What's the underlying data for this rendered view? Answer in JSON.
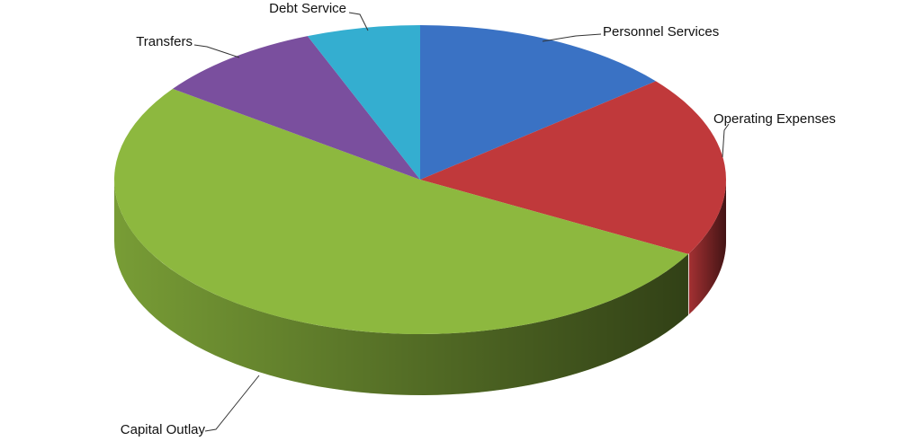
{
  "chart_data": {
    "type": "pie3d",
    "categories": [
      "Personnel Services",
      "Operating Expenses",
      "Capital Outlay",
      "Transfers",
      "Debt Service"
    ],
    "values": [
      14,
      19,
      52,
      9,
      6
    ],
    "colors": [
      "#3a72c4",
      "#c0393b",
      "#8db83f",
      "#7a4f9e",
      "#34aed0"
    ]
  }
}
